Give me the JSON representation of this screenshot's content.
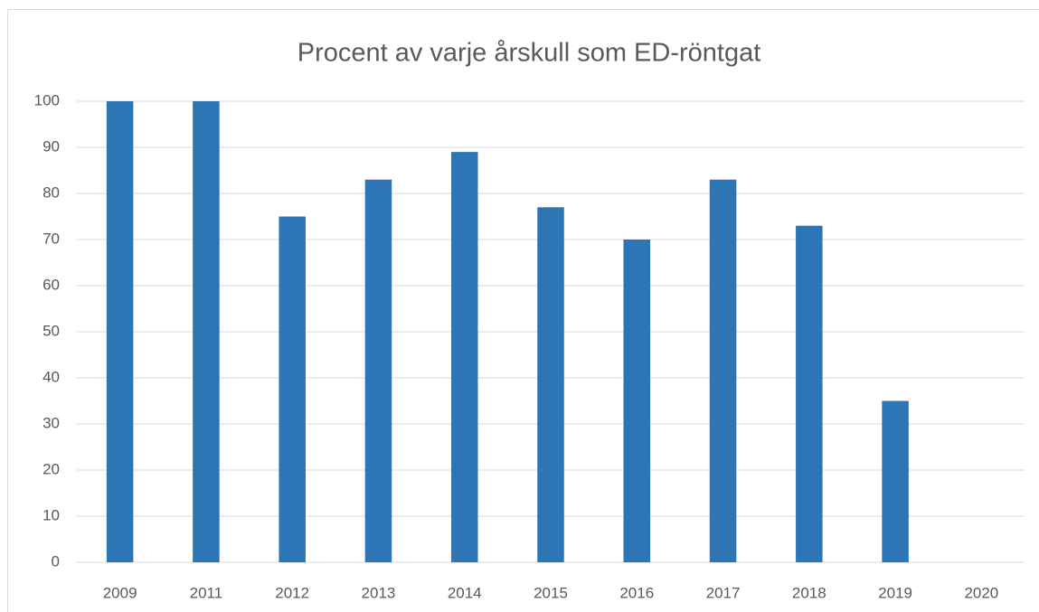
{
  "chart_data": {
    "type": "bar",
    "title": "Procent av varje årskull som ED-röntgat",
    "categories": [
      "2009",
      "2011",
      "2012",
      "2013",
      "2014",
      "2015",
      "2016",
      "2017",
      "2018",
      "2019",
      "2020"
    ],
    "values": [
      100,
      100,
      75,
      83,
      89,
      77,
      70,
      83,
      73,
      35,
      0
    ],
    "color": "#2e75b6",
    "ylim": [
      0,
      100
    ],
    "yticks": [
      0,
      10,
      20,
      30,
      40,
      50,
      60,
      70,
      80,
      90,
      100
    ],
    "grid": true
  }
}
